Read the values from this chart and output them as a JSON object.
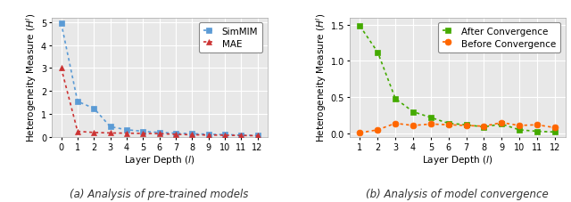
{
  "plot1": {
    "simmim_x": [
      0,
      1,
      2,
      3,
      4,
      5,
      6,
      7,
      8,
      9,
      10,
      11,
      12
    ],
    "simmim_y": [
      4.95,
      1.55,
      1.25,
      0.45,
      0.32,
      0.25,
      0.2,
      0.17,
      0.15,
      0.12,
      0.11,
      0.08,
      0.07
    ],
    "mae_x": [
      0,
      1,
      2,
      3,
      4,
      5,
      6,
      7,
      8,
      9,
      10,
      11,
      12
    ],
    "mae_y": [
      3.0,
      0.25,
      0.2,
      0.18,
      0.17,
      0.16,
      0.15,
      0.12,
      0.1,
      0.09,
      0.08,
      0.07,
      0.06
    ],
    "ylabel": "Heterogeneity Measure ($H^l$)",
    "xlabel": "Layer Depth ($l$)",
    "caption": "(a) Analysis of pre-trained models",
    "simmim_color": "#5b9bd5",
    "mae_color": "#cc3333",
    "simmim_label": "SimMIM",
    "mae_label": "MAE",
    "ylim": [
      0,
      5.2
    ],
    "yticks": [
      0,
      1,
      2,
      3,
      4,
      5
    ],
    "xticks": [
      0,
      1,
      2,
      3,
      4,
      5,
      6,
      7,
      8,
      9,
      10,
      11,
      12
    ]
  },
  "plot2": {
    "after_x": [
      1,
      2,
      3,
      4,
      5,
      6,
      7,
      8,
      9,
      10,
      11,
      12
    ],
    "after_y": [
      1.48,
      1.12,
      0.48,
      0.3,
      0.22,
      0.14,
      0.12,
      0.09,
      0.13,
      0.05,
      0.03,
      0.02
    ],
    "before_x": [
      1,
      2,
      3,
      4,
      5,
      6,
      7,
      8,
      9,
      10,
      11,
      12
    ],
    "before_y": [
      0.01,
      0.05,
      0.14,
      0.11,
      0.13,
      0.12,
      0.11,
      0.1,
      0.15,
      0.11,
      0.12,
      0.08
    ],
    "ylabel": "Heterogeneity Measure ($H^l$)",
    "xlabel": "Layer Depth ($l$)",
    "caption": "(b) Analysis of model convergence",
    "after_color": "#44aa00",
    "before_color": "#ff6600",
    "after_label": "After Convergence",
    "before_label": "Before Convergence",
    "ylim": [
      -0.05,
      1.6
    ],
    "yticks": [
      0.0,
      0.5,
      1.0,
      1.5
    ],
    "xticks": [
      1,
      2,
      3,
      4,
      5,
      6,
      7,
      8,
      9,
      10,
      11,
      12
    ]
  },
  "bg_color": "#e8e8e8",
  "grid_color": "#ffffff",
  "caption_fontsize": 8.5,
  "label_fontsize": 7.5,
  "tick_fontsize": 7,
  "legend_fontsize": 7.5,
  "marker_size": 5,
  "line_width": 1.2
}
